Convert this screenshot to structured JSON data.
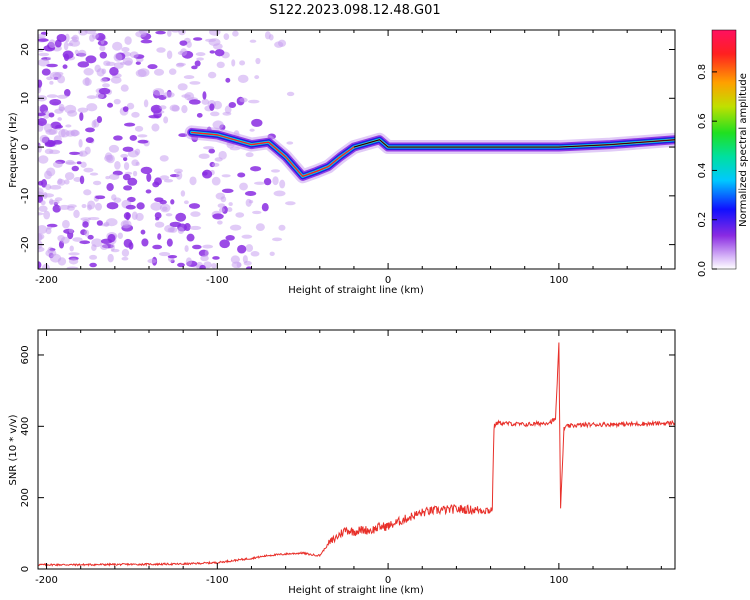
{
  "title": "S122.2023.098.12.48.G01",
  "colors": {
    "snr_line": "#e8302a",
    "axis": "#000000",
    "spec_outer": "#c8a0f0",
    "spec_mid": "#8a2be2",
    "spec_inner": "#2020e0",
    "spec_cyan": "#00e0e0",
    "spec_red": "#ff2020"
  },
  "chart_data": [
    {
      "type": "heatmap",
      "title": "",
      "xlabel": "Height of straight line (km)",
      "ylabel": "Frequency (Hz)",
      "xlim": [
        -205,
        168
      ],
      "ylim": [
        -25,
        24
      ],
      "xticks": [
        -200,
        -100,
        0,
        100
      ],
      "xtick_labels": [
        "-200",
        "-100",
        "0",
        "100"
      ],
      "yticks": [
        -20,
        -10,
        0,
        10,
        20
      ],
      "ytick_labels": [
        "-20",
        "-10",
        "0",
        "10",
        "20"
      ],
      "colorbar": {
        "label": "Normalized spectral amplitude",
        "range": [
          0,
          0.97
        ],
        "ticks": [
          0.0,
          0.2,
          0.4,
          0.6,
          0.8
        ],
        "tick_labels": [
          "0.0",
          "0.2",
          "0.4",
          "0.6",
          "0.8"
        ],
        "colormap": "rainbow"
      },
      "ridge": {
        "x": [
          -115,
          -100,
          -90,
          -80,
          -70,
          -60,
          -50,
          -42,
          -35,
          -28,
          -20,
          -10,
          -5,
          0,
          10,
          30,
          60,
          100,
          130,
          168
        ],
        "y": [
          3,
          2.5,
          1.5,
          0.5,
          1,
          -2,
          -6,
          -5,
          -4,
          -2,
          0,
          1,
          1.5,
          0,
          0,
          0,
          0,
          0,
          0.5,
          1.5
        ]
      },
      "noise_region_km": [
        -205,
        -110
      ],
      "legend": "none"
    },
    {
      "type": "line",
      "title": "",
      "xlabel": "Height of straight line (km)",
      "ylabel": "SNR (10 * v/v)",
      "xlim": [
        -205,
        168
      ],
      "ylim": [
        0,
        670
      ],
      "xticks": [
        -200,
        -100,
        0,
        100
      ],
      "xtick_labels": [
        "-200",
        "-100",
        "0",
        "100"
      ],
      "yticks": [
        0,
        200,
        400,
        600
      ],
      "ytick_labels": [
        "0",
        "200",
        "400",
        "600"
      ],
      "series": [
        {
          "name": "SNR",
          "x": [
            -205,
            -180,
            -150,
            -120,
            -100,
            -90,
            -80,
            -70,
            -60,
            -50,
            -45,
            -40,
            -35,
            -30,
            -25,
            -20,
            -15,
            -10,
            -5,
            0,
            5,
            10,
            15,
            20,
            25,
            30,
            40,
            50,
            60,
            61,
            62,
            63,
            64,
            70,
            80,
            90,
            95,
            98,
            99,
            100,
            101,
            103,
            105,
            110,
            120,
            140,
            160,
            168
          ],
          "y": [
            12,
            12,
            13,
            14,
            18,
            24,
            30,
            38,
            42,
            45,
            40,
            38,
            70,
            90,
            110,
            105,
            110,
            108,
            118,
            120,
            130,
            140,
            150,
            158,
            163,
            165,
            168,
            166,
            165,
            167,
            400,
            405,
            410,
            408,
            405,
            408,
            412,
            420,
            520,
            635,
            170,
            395,
            400,
            403,
            405,
            406,
            408,
            410
          ]
        }
      ],
      "legend": "none"
    }
  ]
}
